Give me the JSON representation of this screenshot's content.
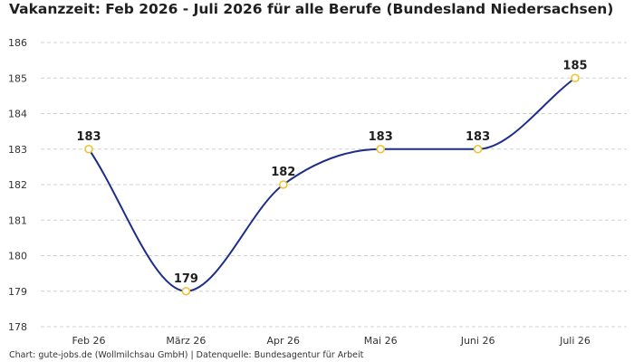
{
  "title": "Vakanzzeit: Feb 2026 - Juli 2026 für alle Berufe (Bundesland Niedersachsen)",
  "footer": "Chart: gute-jobs.de (Wollmilchsau GmbH) | Datenquelle: Bundesagentur für Arbeit",
  "colors": {
    "line": "#1d2d8c",
    "marker_stroke": "#f2c12e",
    "marker_fill": "#ffffff",
    "grid": "#d0d0d0",
    "text": "#1f1f1f"
  },
  "chart_data": {
    "type": "line",
    "title": "Vakanzzeit: Feb 2026 - Juli 2026 für alle Berufe (Bundesland Niedersachsen)",
    "xlabel": "",
    "ylabel": "",
    "categories": [
      "Feb 26",
      "März 26",
      "Apr 26",
      "Mai 26",
      "Juni 26",
      "Juli 26"
    ],
    "values": [
      183,
      179,
      182,
      183,
      183,
      185
    ],
    "data_labels": [
      "183",
      "179",
      "182",
      "183",
      "183",
      "185"
    ],
    "ylim": [
      178,
      186
    ],
    "yticks": [
      178,
      179,
      180,
      181,
      182,
      183,
      184,
      185,
      186
    ],
    "grid": true,
    "legend": "none",
    "smooth": true
  }
}
